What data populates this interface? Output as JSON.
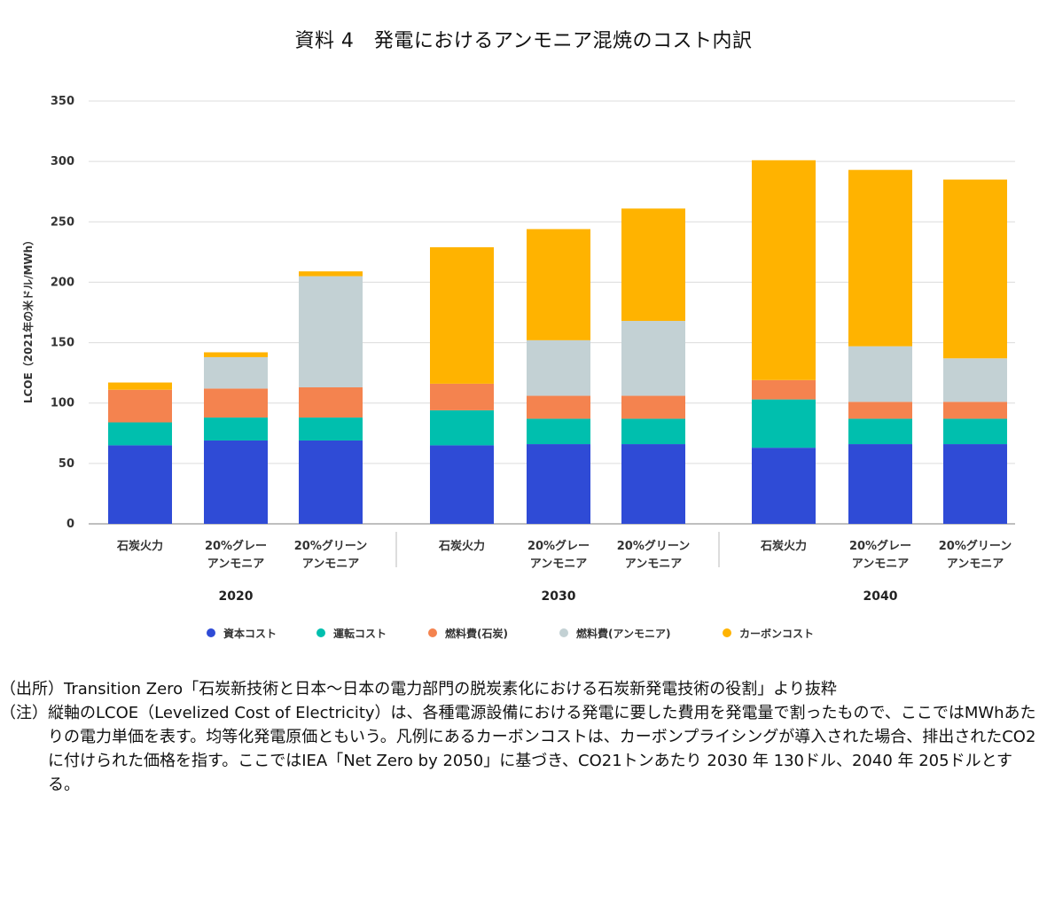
{
  "title": "資料 4　発電におけるアンモニア混焼のコスト内訳",
  "chart_data": {
    "type": "bar",
    "stacked": true,
    "ylabel": "LCOE（2021年の米ドル/MWh）",
    "ylim": [
      0,
      350
    ],
    "yticks": [
      0,
      50,
      100,
      150,
      200,
      250,
      300,
      350
    ],
    "grid": true,
    "legend_position": "bottom",
    "groups": [
      {
        "label": "2020",
        "categories": [
          [
            "石炭火力"
          ],
          [
            "20%グレー",
            "アンモニア"
          ],
          [
            "20%グリーン",
            "アンモニア"
          ]
        ]
      },
      {
        "label": "2030",
        "categories": [
          [
            "石炭火力"
          ],
          [
            "20%グレー",
            "アンモニア"
          ],
          [
            "20%グリーン",
            "アンモニア"
          ]
        ]
      },
      {
        "label": "2040",
        "categories": [
          [
            "石炭火力"
          ],
          [
            "20%グレー",
            "アンモニア"
          ],
          [
            "20%グリーン",
            "アンモニア"
          ]
        ]
      }
    ],
    "series": [
      {
        "name": "資本コスト",
        "color": "#2f4bd6",
        "values": [
          65,
          69,
          69,
          65,
          66,
          66,
          63,
          66,
          66
        ]
      },
      {
        "name": "運転コスト",
        "color": "#00bfae",
        "values": [
          19,
          19,
          19,
          29,
          21,
          21,
          40,
          21,
          21
        ]
      },
      {
        "name": "燃料費(石炭)",
        "color": "#f4834f",
        "values": [
          27,
          24,
          25,
          22,
          19,
          19,
          16,
          14,
          14
        ]
      },
      {
        "name": "燃料費(アンモニア)",
        "color": "#c3d1d4",
        "values": [
          0,
          26,
          92,
          0,
          46,
          62,
          0,
          46,
          36
        ]
      },
      {
        "name": "カーボンコスト",
        "color": "#ffb300",
        "values": [
          6,
          4,
          4,
          113,
          92,
          93,
          182,
          146,
          148
        ]
      }
    ]
  },
  "notes": [
    {
      "label": "（出所）",
      "text": "Transition Zero「石炭新技術と日本～日本の電力部門の脱炭素化における石炭新発電技術の役割」より抜粋"
    },
    {
      "label": "（注）",
      "text": "縦軸のLCOE（Levelized Cost of Electricity）は、各種電源設備における発電に要した費用を発電量で割ったもので、ここではMWhあたりの電力単価を表す。均等化発電原価ともいう。凡例にあるカーボンコストは、カーボンプライシングが導入された場合、排出されたCO2 に付けられた価格を指す。ここではIEA「Net Zero by 2050」に基づき、CO21トンあたり 2030 年 130ドル、2040 年 205ドルとする。"
    }
  ]
}
